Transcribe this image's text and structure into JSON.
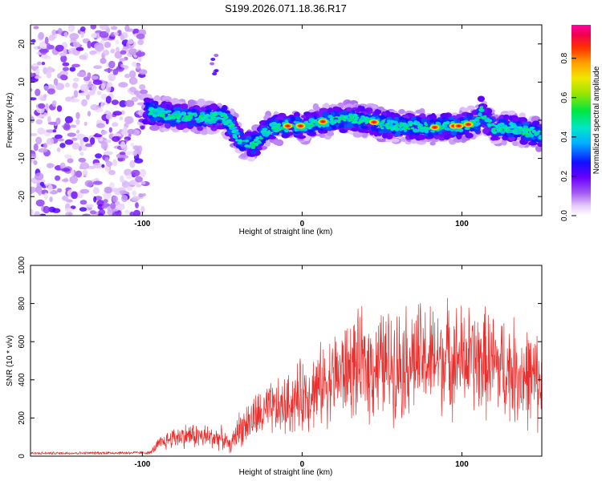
{
  "title": "S199.2026.071.18.36.R17",
  "chart_data": [
    {
      "type": "heatmap",
      "name": "spectrogram",
      "xlabel": "Height of straight line (km)",
      "ylabel": "Frequency (Hz)",
      "xlim": [
        -170,
        150
      ],
      "ylim": [
        -25,
        25
      ],
      "xticks": [
        -100,
        0,
        100
      ],
      "yticks": [
        20,
        10,
        0,
        -10,
        -20
      ],
      "colorbar": {
        "label": "Normalized spectral amplitude",
        "range": [
          0,
          0.97
        ],
        "ticks": [
          0.0,
          0.2,
          0.4,
          0.6,
          0.8
        ]
      },
      "noise_region": {
        "x_from": -170,
        "x_to": -98,
        "y_from": -25,
        "y_to": 25
      },
      "ridge": {
        "x": [
          -98,
          -90,
          -80,
          -70,
          -60,
          -50,
          -45,
          -40,
          -35,
          -30,
          -25,
          -20,
          -10,
          0,
          10,
          20,
          30,
          40,
          50,
          60,
          70,
          80,
          90,
          100,
          110,
          112,
          115,
          120,
          130,
          140,
          150
        ],
        "y": [
          2.5,
          2,
          1,
          1,
          0.5,
          1,
          -1,
          -5,
          -6,
          -6.5,
          -4,
          -2,
          -1.5,
          -1.5,
          -0.5,
          0,
          0.5,
          0,
          -1,
          -1.5,
          -1.5,
          -2,
          -1.5,
          -1.5,
          -0.5,
          3,
          0,
          -2,
          -2,
          -3,
          -3.5
        ],
        "peak_x": [
          -9,
          -1,
          13,
          45,
          83,
          95,
          98,
          104
        ]
      },
      "artifact": {
        "x": -55,
        "y": [
          11,
          18
        ]
      }
    },
    {
      "type": "line",
      "name": "snr",
      "xlabel": "Height of straight line (km)",
      "ylabel": "SNR (10 * v/v)",
      "xlim": [
        -170,
        150
      ],
      "ylim": [
        0,
        1000
      ],
      "xticks": [
        -100,
        0,
        100
      ],
      "yticks": [
        0,
        200,
        400,
        600,
        800,
        1000
      ],
      "color": "#e8302e",
      "envelope": {
        "x": [
          -170,
          -95,
          -90,
          -80,
          -70,
          -60,
          -50,
          -45,
          -40,
          -30,
          -20,
          -10,
          0,
          10,
          20,
          30,
          40,
          50,
          60,
          70,
          80,
          90,
          100,
          110,
          120,
          130,
          140,
          150
        ],
        "mean": [
          15,
          18,
          60,
          100,
          110,
          100,
          95,
          50,
          140,
          200,
          240,
          260,
          320,
          360,
          420,
          460,
          470,
          480,
          490,
          510,
          500,
          520,
          510,
          500,
          480,
          450,
          420,
          380
        ],
        "spread": [
          8,
          10,
          45,
          70,
          80,
          80,
          70,
          40,
          110,
          150,
          170,
          190,
          230,
          250,
          280,
          320,
          340,
          340,
          350,
          360,
          350,
          350,
          340,
          340,
          340,
          330,
          320,
          300
        ]
      }
    }
  ]
}
